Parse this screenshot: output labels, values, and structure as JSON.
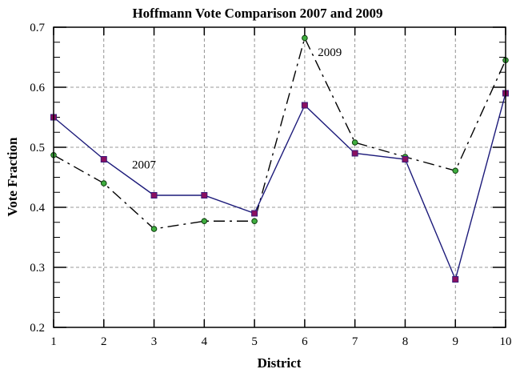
{
  "chart_data": {
    "type": "line",
    "title": "Hoffmann Vote Comparison 2007 and 2009",
    "xlabel": "District",
    "ylabel": "Vote Fraction",
    "x": [
      1,
      2,
      3,
      4,
      5,
      6,
      7,
      8,
      9,
      10
    ],
    "xlim": [
      1,
      10
    ],
    "ylim": [
      0.2,
      0.7
    ],
    "yticks": [
      "0.2",
      "0.3",
      "0.4",
      "0.5",
      "0.6",
      "0.7"
    ],
    "xticks": [
      "1",
      "2",
      "3",
      "4",
      "5",
      "6",
      "7",
      "8",
      "9",
      "10"
    ],
    "grid": true,
    "series": [
      {
        "values": [
          0.55,
          0.48,
          0.42,
          0.42,
          0.39,
          0.57,
          0.49,
          0.48,
          0.28,
          0.59
        ],
        "line_color": "#1c1a7a",
        "marker": "square",
        "marker_color": "#8a1060",
        "dash": "solid"
      },
      {
        "values": [
          0.487,
          0.44,
          0.364,
          0.377,
          0.377,
          0.682,
          0.508,
          0.484,
          0.461,
          0.645
        ],
        "line_color": "#000000",
        "marker": "circle",
        "marker_color": "#3fae3f",
        "dash": "dashdot"
      }
    ],
    "annotations": [
      {
        "text": "2007",
        "x": 2.8,
        "y": 0.465
      },
      {
        "text": "2009",
        "x": 6.5,
        "y": 0.652
      }
    ]
  }
}
